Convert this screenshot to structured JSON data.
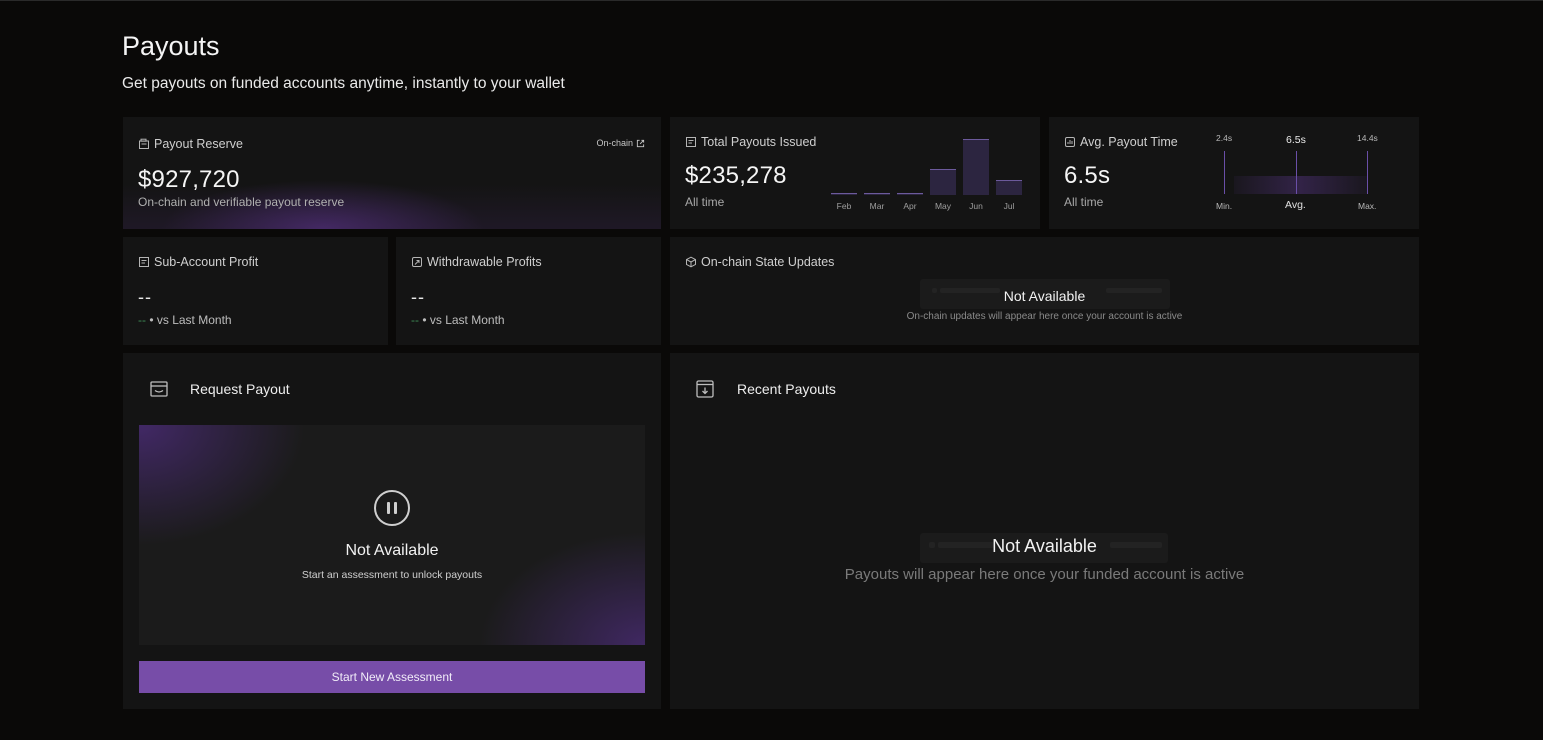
{
  "page": {
    "title": "Payouts",
    "subtitle": "Get payouts on funded accounts anytime, instantly to your wallet"
  },
  "reserve": {
    "label": "Payout Reserve",
    "link": "On-chain",
    "value": "$927,720",
    "caption": "On-chain and verifiable payout reserve"
  },
  "total_payouts": {
    "label": "Total Payouts Issued",
    "value": "$235,278",
    "caption": "All time"
  },
  "avg_time": {
    "label": "Avg. Payout Time",
    "value": "6.5s",
    "caption": "All time",
    "min_value": "2.4s",
    "avg_value": "6.5s",
    "max_value": "14.4s",
    "min_label": "Min.",
    "avg_label": "Avg.",
    "max_label": "Max."
  },
  "sub_profit": {
    "label": "Sub-Account Profit",
    "value": "--",
    "delta": "--",
    "compare": "• vs Last Month"
  },
  "withdrawable": {
    "label": "Withdrawable Profits",
    "value": "--",
    "delta": "--",
    "compare": "• vs Last Month"
  },
  "state_updates": {
    "label": "On-chain State Updates",
    "empty_title": "Not Available",
    "empty_sub": "On-chain updates will appear here once your account is active"
  },
  "request": {
    "title": "Request Payout",
    "empty_title": "Not Available",
    "empty_sub": "Start an assessment to unlock payouts",
    "button": "Start New Assessment"
  },
  "recent": {
    "title": "Recent Payouts",
    "empty_title": "Not Available",
    "empty_sub": "Payouts will appear here once your funded account is active"
  },
  "chart_data": {
    "type": "bar",
    "categories": [
      "Feb",
      "Mar",
      "Apr",
      "May",
      "Jun",
      "Jul"
    ],
    "values": [
      2,
      2,
      2,
      27,
      58,
      16
    ],
    "ylim": [
      0,
      60
    ],
    "grid": false,
    "bar_color": "#2c2540",
    "bar_edge_color": "#6c5a9c"
  },
  "colors": {
    "accent": "#774da8",
    "background": "#0a0908",
    "card": "#141414",
    "positive": "#3e8a55"
  }
}
